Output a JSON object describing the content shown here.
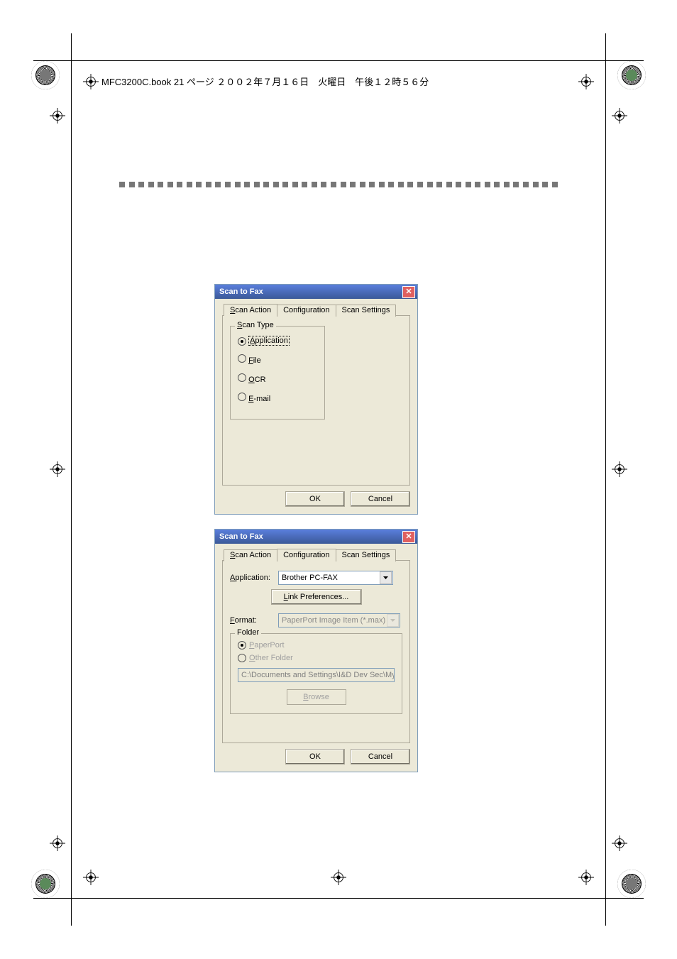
{
  "header": {
    "text": "MFC3200C.book  21 ページ  ２００２年７月１６日　火曜日　午後１２時５６分"
  },
  "crop": {
    "line_color": "#000000"
  },
  "dialog1": {
    "title": "Scan to Fax",
    "tabs": [
      "Scan Action",
      "Configuration",
      "Scan Settings"
    ],
    "active_tab_index": 0,
    "group_legend": "Scan Type",
    "options": [
      {
        "label_prefix": "A",
        "label_rest": "pplication",
        "selected": true
      },
      {
        "label_prefix": "F",
        "label_rest": "ile",
        "selected": false
      },
      {
        "label_prefix": "O",
        "label_rest": "CR",
        "selected": false
      },
      {
        "label_prefix": "E",
        "label_rest": "-mail",
        "selected": false
      }
    ],
    "ok": "OK",
    "cancel": "Cancel"
  },
  "dialog2": {
    "title": "Scan to Fax",
    "tabs": [
      "Scan Action",
      "Configuration",
      "Scan Settings"
    ],
    "active_tab_index": 1,
    "application_label_u": "A",
    "application_label_rest": "pplication:",
    "application_value": "Brother PC-FAX",
    "link_prefs_u": "L",
    "link_prefs_rest": "ink Preferences...",
    "format_label_u": "F",
    "format_label_rest": "ormat:",
    "format_value": "PaperPort Image Item (*.max)",
    "folder_legend": "Folder",
    "folder_options": [
      {
        "label_u": "P",
        "label_rest": "aperPort",
        "selected": true
      },
      {
        "label_u": "O",
        "label_rest": "ther Folder",
        "selected": false
      }
    ],
    "folder_path": "C:\\Documents and Settings\\I&D Dev Sec\\My Documents\\M",
    "browse_u": "B",
    "browse_rest": "rowse",
    "ok": "OK",
    "cancel": "Cancel"
  },
  "colors": {
    "page_bg": "#ffffff",
    "dialog_bg": "#ece9d8",
    "title_bg_start": "#5a7edc",
    "title_bg_end": "#3b5998",
    "border": "#aca899"
  }
}
